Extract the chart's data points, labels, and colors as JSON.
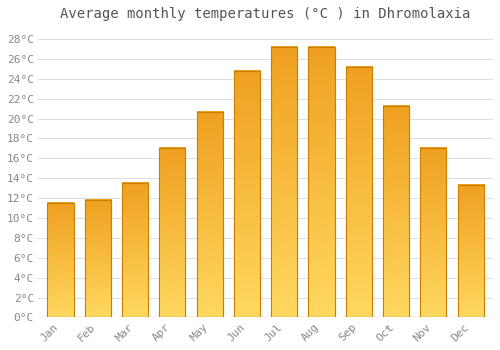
{
  "title": "Average monthly temperatures (°C ) in Dhromolaxia",
  "months": [
    "Jan",
    "Feb",
    "Mar",
    "Apr",
    "May",
    "Jun",
    "Jul",
    "Aug",
    "Sep",
    "Oct",
    "Nov",
    "Dec"
  ],
  "values": [
    11.5,
    11.8,
    13.5,
    17.0,
    20.7,
    24.8,
    27.2,
    27.2,
    25.2,
    21.3,
    17.0,
    13.3
  ],
  "bar_color_top": "#F5A623",
  "bar_color_mid": "#FFD050",
  "bar_edge_color": "#C88000",
  "background_color": "#FFFFFF",
  "grid_color": "#DDDDDD",
  "title_fontsize": 10,
  "tick_fontsize": 8,
  "ylim": [
    0,
    29
  ],
  "yticks": [
    0,
    2,
    4,
    6,
    8,
    10,
    12,
    14,
    16,
    18,
    20,
    22,
    24,
    26,
    28
  ]
}
